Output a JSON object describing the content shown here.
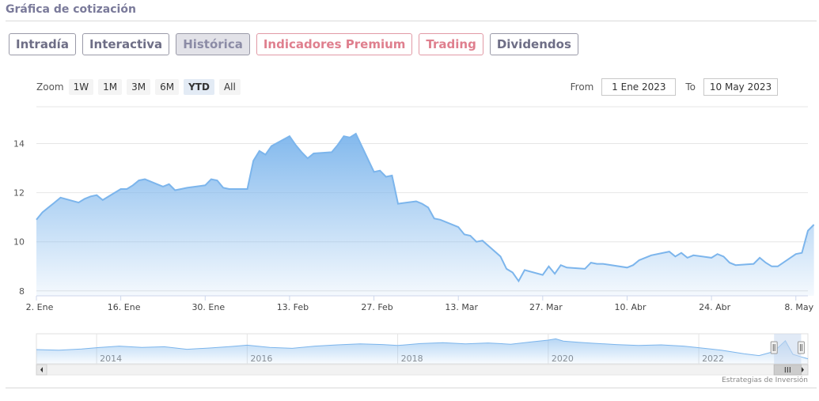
{
  "header": {
    "title": "Gráfica de cotización"
  },
  "tabs": [
    {
      "label": "Intradía",
      "style": "normal"
    },
    {
      "label": "Interactiva",
      "style": "normal"
    },
    {
      "label": "Histórica",
      "style": "active"
    },
    {
      "label": "Indicadores Premium",
      "style": "red"
    },
    {
      "label": "Trading",
      "style": "red"
    },
    {
      "label": "Dividendos",
      "style": "normal"
    }
  ],
  "zoom": {
    "label": "Zoom",
    "buttons": [
      "1W",
      "1M",
      "3M",
      "6M",
      "YTD",
      "All"
    ],
    "selected": "YTD"
  },
  "range": {
    "from_label": "From",
    "from_value": "1 Ene 2023",
    "to_label": "To",
    "to_value": "10 May 2023"
  },
  "credit": "Estrategias de Inversión",
  "colors": {
    "line": "#7cb5ec",
    "area_top": "#7cb5ec",
    "navigator_mask": "#c8d8ef"
  },
  "chart_data": {
    "type": "area",
    "title": "",
    "xlabel": "",
    "ylabel": "",
    "ylim": [
      7.8,
      15.5
    ],
    "y_ticks": [
      8,
      10,
      12,
      14
    ],
    "x_ticks": [
      {
        "date": "2023-01-02",
        "label": "2. Ene"
      },
      {
        "date": "2023-01-16",
        "label": "16. Ene"
      },
      {
        "date": "2023-01-30",
        "label": "30. Ene"
      },
      {
        "date": "2023-02-13",
        "label": "13. Feb"
      },
      {
        "date": "2023-02-27",
        "label": "27. Feb"
      },
      {
        "date": "2023-03-13",
        "label": "13. Mar"
      },
      {
        "date": "2023-03-27",
        "label": "27. Mar"
      },
      {
        "date": "2023-04-10",
        "label": "10. Abr"
      },
      {
        "date": "2023-04-24",
        "label": "24. Abr"
      },
      {
        "date": "2023-05-08",
        "label": "8. May"
      }
    ],
    "x_range": [
      "2023-01-02",
      "2023-05-10"
    ],
    "grid": true,
    "legend": "none",
    "series": [
      {
        "points": [
          [
            "2023-01-02",
            10.9
          ],
          [
            "2023-01-03",
            11.2
          ],
          [
            "2023-01-04",
            11.4
          ],
          [
            "2023-01-05",
            11.6
          ],
          [
            "2023-01-06",
            11.8
          ],
          [
            "2023-01-09",
            11.6
          ],
          [
            "2023-01-10",
            11.75
          ],
          [
            "2023-01-11",
            11.85
          ],
          [
            "2023-01-12",
            11.9
          ],
          [
            "2023-01-13",
            11.7
          ],
          [
            "2023-01-16",
            12.15
          ],
          [
            "2023-01-17",
            12.15
          ],
          [
            "2023-01-18",
            12.3
          ],
          [
            "2023-01-19",
            12.5
          ],
          [
            "2023-01-20",
            12.55
          ],
          [
            "2023-01-23",
            12.25
          ],
          [
            "2023-01-24",
            12.35
          ],
          [
            "2023-01-25",
            12.1
          ],
          [
            "2023-01-26",
            12.15
          ],
          [
            "2023-01-27",
            12.2
          ],
          [
            "2023-01-30",
            12.3
          ],
          [
            "2023-01-31",
            12.55
          ],
          [
            "2023-02-01",
            12.5
          ],
          [
            "2023-02-02",
            12.2
          ],
          [
            "2023-02-03",
            12.15
          ],
          [
            "2023-02-06",
            12.15
          ],
          [
            "2023-02-07",
            13.3
          ],
          [
            "2023-02-08",
            13.7
          ],
          [
            "2023-02-09",
            13.55
          ],
          [
            "2023-02-10",
            13.9
          ],
          [
            "2023-02-13",
            14.3
          ],
          [
            "2023-02-14",
            13.95
          ],
          [
            "2023-02-15",
            13.65
          ],
          [
            "2023-02-16",
            13.4
          ],
          [
            "2023-02-17",
            13.6
          ],
          [
            "2023-02-20",
            13.65
          ],
          [
            "2023-02-21",
            13.95
          ],
          [
            "2023-02-22",
            14.3
          ],
          [
            "2023-02-23",
            14.25
          ],
          [
            "2023-02-24",
            14.4
          ],
          [
            "2023-02-27",
            12.85
          ],
          [
            "2023-02-28",
            12.9
          ],
          [
            "2023-03-01",
            12.65
          ],
          [
            "2023-03-02",
            12.7
          ],
          [
            "2023-03-03",
            11.55
          ],
          [
            "2023-03-06",
            11.65
          ],
          [
            "2023-03-07",
            11.55
          ],
          [
            "2023-03-08",
            11.4
          ],
          [
            "2023-03-09",
            10.95
          ],
          [
            "2023-03-10",
            10.9
          ],
          [
            "2023-03-13",
            10.6
          ],
          [
            "2023-03-14",
            10.3
          ],
          [
            "2023-03-15",
            10.25
          ],
          [
            "2023-03-16",
            10.0
          ],
          [
            "2023-03-17",
            10.05
          ],
          [
            "2023-03-20",
            9.4
          ],
          [
            "2023-03-21",
            8.9
          ],
          [
            "2023-03-22",
            8.75
          ],
          [
            "2023-03-23",
            8.4
          ],
          [
            "2023-03-24",
            8.85
          ],
          [
            "2023-03-27",
            8.65
          ],
          [
            "2023-03-28",
            9.0
          ],
          [
            "2023-03-29",
            8.7
          ],
          [
            "2023-03-30",
            9.05
          ],
          [
            "2023-03-31",
            8.95
          ],
          [
            "2023-04-03",
            8.9
          ],
          [
            "2023-04-04",
            9.15
          ],
          [
            "2023-04-05",
            9.1
          ],
          [
            "2023-04-06",
            9.1
          ],
          [
            "2023-04-10",
            8.95
          ],
          [
            "2023-04-11",
            9.05
          ],
          [
            "2023-04-12",
            9.25
          ],
          [
            "2023-04-13",
            9.35
          ],
          [
            "2023-04-14",
            9.45
          ],
          [
            "2023-04-17",
            9.6
          ],
          [
            "2023-04-18",
            9.4
          ],
          [
            "2023-04-19",
            9.55
          ],
          [
            "2023-04-20",
            9.35
          ],
          [
            "2023-04-21",
            9.45
          ],
          [
            "2023-04-24",
            9.35
          ],
          [
            "2023-04-25",
            9.5
          ],
          [
            "2023-04-26",
            9.4
          ],
          [
            "2023-04-27",
            9.15
          ],
          [
            "2023-04-28",
            9.05
          ],
          [
            "2023-05-01",
            9.1
          ],
          [
            "2023-05-02",
            9.35
          ],
          [
            "2023-05-03",
            9.15
          ],
          [
            "2023-05-04",
            9.0
          ],
          [
            "2023-05-05",
            9.0
          ],
          [
            "2023-05-08",
            9.5
          ],
          [
            "2023-05-09",
            9.55
          ],
          [
            "2023-05-10",
            10.45
          ],
          [
            "2023-05-11",
            10.7
          ]
        ]
      }
    ],
    "navigator": {
      "x_range": [
        2013.2,
        2023.45
      ],
      "tick_years": [
        2014,
        2016,
        2018,
        2020,
        2022
      ],
      "selected_range": [
        2023.0,
        2023.36
      ],
      "points": [
        [
          2013.2,
          11.5
        ],
        [
          2013.5,
          11.3
        ],
        [
          2013.8,
          11.7
        ],
        [
          2014.0,
          12.1
        ],
        [
          2014.3,
          12.6
        ],
        [
          2014.6,
          12.2
        ],
        [
          2014.9,
          12.4
        ],
        [
          2015.2,
          11.6
        ],
        [
          2015.5,
          12.0
        ],
        [
          2015.8,
          12.5
        ],
        [
          2016.0,
          12.9
        ],
        [
          2016.3,
          12.2
        ],
        [
          2016.6,
          11.9
        ],
        [
          2016.9,
          12.6
        ],
        [
          2017.2,
          13.0
        ],
        [
          2017.5,
          13.3
        ],
        [
          2017.8,
          13.1
        ],
        [
          2018.0,
          12.8
        ],
        [
          2018.3,
          13.4
        ],
        [
          2018.6,
          13.7
        ],
        [
          2018.9,
          13.3
        ],
        [
          2019.2,
          13.6
        ],
        [
          2019.5,
          13.2
        ],
        [
          2019.8,
          14.0
        ],
        [
          2020.0,
          14.5
        ],
        [
          2020.1,
          14.9
        ],
        [
          2020.2,
          14.2
        ],
        [
          2020.4,
          13.8
        ],
        [
          2020.6,
          13.5
        ],
        [
          2020.9,
          13.1
        ],
        [
          2021.2,
          12.8
        ],
        [
          2021.5,
          13.0
        ],
        [
          2021.8,
          12.6
        ],
        [
          2022.0,
          12.1
        ],
        [
          2022.3,
          11.3
        ],
        [
          2022.6,
          10.2
        ],
        [
          2022.8,
          9.6
        ],
        [
          2023.0,
          10.9
        ],
        [
          2023.15,
          14.3
        ],
        [
          2023.25,
          10.0
        ],
        [
          2023.36,
          9.2
        ],
        [
          2023.45,
          8.6
        ]
      ]
    }
  }
}
